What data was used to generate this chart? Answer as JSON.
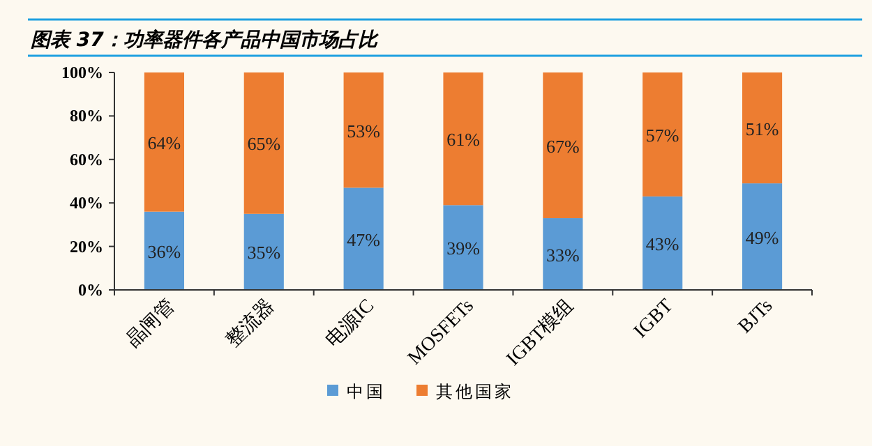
{
  "chart_data": {
    "type": "bar",
    "stacked": true,
    "title": "图表 37：功率器件各产品中国市场占比",
    "categories": [
      "晶闸管",
      "整流器",
      "电源IC",
      "MOSFETs",
      "IGBT模组",
      "IGBT",
      "BJTs"
    ],
    "series": [
      {
        "name": "中国",
        "color": "#5b9bd5",
        "values": [
          36,
          35,
          47,
          39,
          33,
          43,
          49
        ],
        "value_labels": [
          "36%",
          "35%",
          "47%",
          "39%",
          "33%",
          "43%",
          "49%"
        ]
      },
      {
        "name": "其他国家",
        "color": "#ed7d31",
        "values": [
          64,
          65,
          53,
          61,
          67,
          57,
          51
        ],
        "value_labels": [
          "64%",
          "65%",
          "53%",
          "61%",
          "67%",
          "57%",
          "51%"
        ]
      }
    ],
    "ylim": [
      0,
      100
    ],
    "yticks": [
      {
        "value": 0,
        "label": "0%"
      },
      {
        "value": 20,
        "label": "20%"
      },
      {
        "value": 40,
        "label": "40%"
      },
      {
        "value": 60,
        "label": "60%"
      },
      {
        "value": 80,
        "label": "80%"
      },
      {
        "value": 100,
        "label": "100%"
      }
    ],
    "legend": "bottom",
    "grid": false
  }
}
